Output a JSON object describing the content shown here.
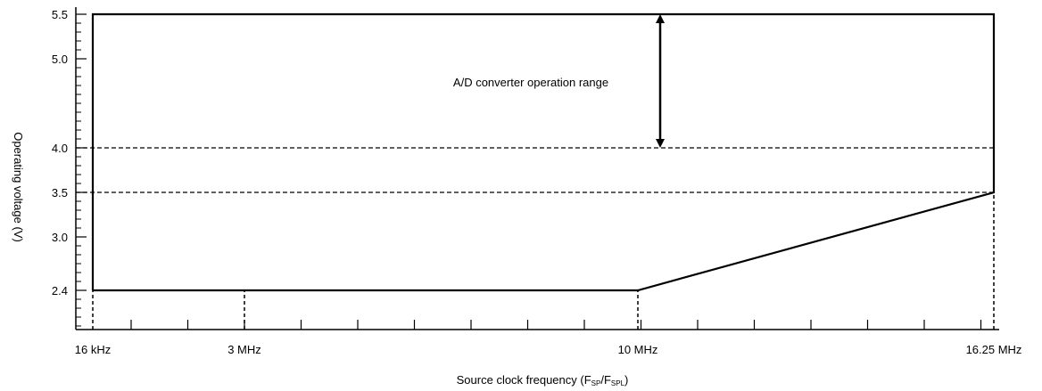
{
  "chart_data": {
    "type": "line",
    "title": "",
    "xlabel_main": "Source clock frequency (F",
    "xlabel_sub1": "SP",
    "xlabel_mid": "/F",
    "xlabel_sub2": "SPL",
    "xlabel_end": ")",
    "ylabel": "Operating voltage (V)",
    "x_tick_labels": [
      "16 kHz",
      "3 MHz",
      "10 MHz",
      "16.25 MHz"
    ],
    "y_tick_labels": [
      "5.5",
      "5.0",
      "4.0",
      "3.5",
      "3.0",
      "2.4"
    ],
    "y_ticks": [
      5.5,
      5.0,
      4.0,
      3.5,
      3.0,
      2.4
    ],
    "x_ticks": [
      0.016,
      3,
      10,
      16.25
    ],
    "ylim": [
      1.6,
      5.5
    ],
    "operating_region": {
      "x": [
        0.016,
        0.016,
        16.25,
        16.25,
        10,
        0.016
      ],
      "y": [
        2.4,
        5.5,
        5.5,
        3.5,
        2.4,
        2.4
      ]
    },
    "reference_lines_y": [
      4.0,
      3.5
    ],
    "annotation": {
      "text": "A/D converter operation range",
      "from_y": 5.5,
      "to_y": 4.0
    },
    "grid": false,
    "legend": "none"
  }
}
